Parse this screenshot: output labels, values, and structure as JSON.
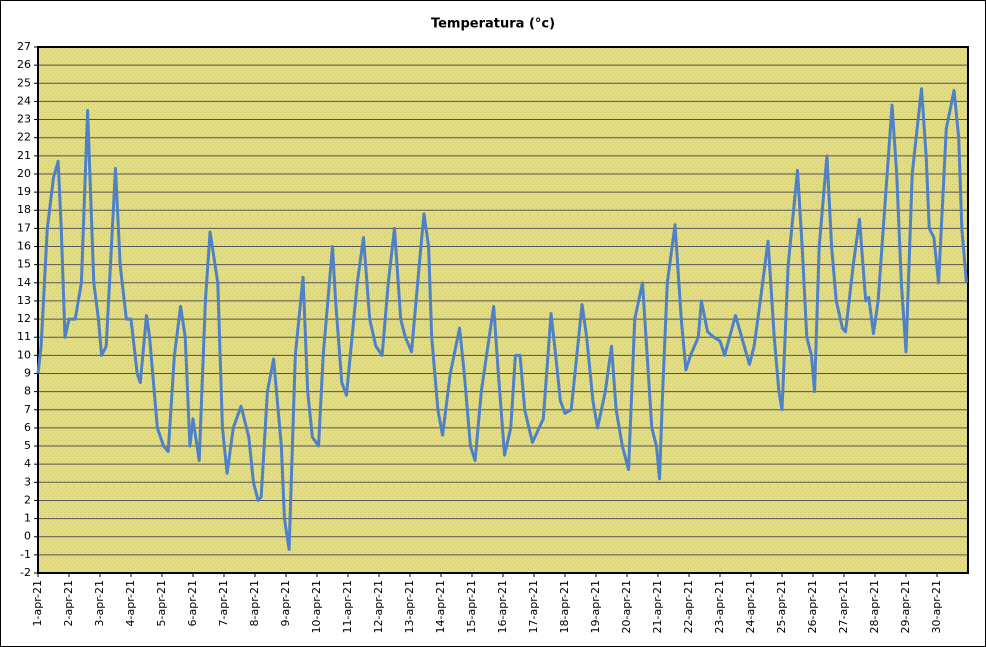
{
  "chart_data": {
    "type": "line",
    "title": "Temperatura (°c)",
    "x": [
      1.0,
      1.1,
      1.3,
      1.5,
      1.65,
      1.75,
      1.87,
      2.0,
      2.2,
      2.4,
      2.6,
      2.8,
      2.95,
      3.05,
      3.2,
      3.5,
      3.65,
      3.85,
      4.0,
      4.2,
      4.3,
      4.5,
      4.6,
      4.85,
      5.05,
      5.2,
      5.4,
      5.6,
      5.75,
      5.9,
      6.0,
      6.2,
      6.4,
      6.55,
      6.8,
      6.95,
      7.1,
      7.3,
      7.55,
      7.8,
      7.95,
      8.1,
      8.2,
      8.4,
      8.6,
      8.85,
      8.95,
      9.1,
      9.3,
      9.55,
      9.7,
      9.85,
      10.05,
      10.2,
      10.5,
      10.6,
      10.8,
      10.95,
      11.3,
      11.5,
      11.7,
      11.9,
      12.1,
      12.3,
      12.5,
      12.7,
      12.85,
      13.05,
      13.3,
      13.45,
      13.6,
      13.7,
      13.9,
      14.05,
      14.3,
      14.6,
      14.75,
      14.95,
      15.1,
      15.3,
      15.7,
      15.85,
      16.05,
      16.25,
      16.4,
      16.55,
      16.7,
      16.95,
      17.3,
      17.55,
      17.7,
      17.85,
      18.0,
      18.2,
      18.55,
      18.7,
      18.9,
      19.05,
      19.3,
      19.5,
      19.65,
      19.85,
      20.05,
      20.25,
      20.5,
      20.65,
      20.8,
      20.95,
      21.05,
      21.15,
      21.3,
      21.55,
      21.75,
      21.9,
      22.05,
      22.3,
      22.4,
      22.6,
      22.8,
      23.0,
      23.15,
      23.5,
      23.7,
      23.95,
      24.1,
      24.3,
      24.55,
      24.75,
      24.9,
      25.0,
      25.2,
      25.5,
      25.65,
      25.8,
      25.95,
      26.05,
      26.2,
      26.45,
      26.6,
      26.75,
      26.95,
      27.05,
      27.3,
      27.5,
      27.7,
      27.8,
      27.95,
      28.1,
      28.55,
      28.7,
      28.85,
      29.0,
      29.2,
      29.5,
      29.65,
      29.75,
      29.9,
      30.05,
      30.3,
      30.55,
      30.7,
      30.8,
      30.95
    ],
    "values": [
      9,
      10.5,
      17,
      19.8,
      20.7,
      17,
      11,
      12,
      12,
      14,
      23.5,
      14,
      12,
      10,
      10.5,
      20.3,
      15,
      12,
      12,
      9,
      8.5,
      12.2,
      11,
      6,
      5,
      4.7,
      10,
      12.7,
      11,
      5,
      6.5,
      4.2,
      13,
      16.8,
      14,
      6,
      3.5,
      6,
      7.2,
      5.5,
      3,
      2,
      2.2,
      8,
      9.8,
      5,
      1,
      -0.7,
      10,
      14.3,
      8,
      5.5,
      5,
      10,
      16,
      13,
      8.5,
      7.8,
      14,
      16.5,
      12,
      10.5,
      10,
      14,
      17,
      12,
      11,
      10.2,
      15,
      17.8,
      16,
      11,
      7,
      5.6,
      9,
      11.5,
      9,
      5,
      4.2,
      8,
      12.7,
      9,
      4.5,
      6,
      10,
      10,
      7,
      5.2,
      6.5,
      12.3,
      10,
      7.5,
      6.8,
      7,
      12.8,
      11,
      7.5,
      6,
      8,
      10.5,
      7,
      5,
      3.7,
      12,
      14,
      10,
      6,
      5,
      3.2,
      8,
      14,
      17.2,
      12,
      9.2,
      10,
      11,
      13,
      11.3,
      11,
      10.8,
      10,
      12.2,
      11,
      9.5,
      10.5,
      13,
      16.3,
      11,
      8,
      7,
      15,
      20.2,
      16,
      11,
      10,
      8,
      16,
      21,
      16,
      13,
      11.5,
      11.3,
      15,
      17.5,
      13,
      13.2,
      11.2,
      13,
      23.8,
      20,
      14,
      10.2,
      20,
      24.7,
      21,
      17,
      16.5,
      14,
      22.5,
      24.6,
      22,
      17,
      14
    ],
    "color": "#4f81c7",
    "xlim": [
      1,
      31
    ],
    "xticks": [
      {
        "value": 1,
        "label": "1-apr-21"
      },
      {
        "value": 2,
        "label": "2-apr-21"
      },
      {
        "value": 3,
        "label": "3-apr-21"
      },
      {
        "value": 4,
        "label": "4-apr-21"
      },
      {
        "value": 5,
        "label": "5-apr-21"
      },
      {
        "value": 6,
        "label": "6-apr-21"
      },
      {
        "value": 7,
        "label": "7-apr-21"
      },
      {
        "value": 8,
        "label": "8-apr-21"
      },
      {
        "value": 9,
        "label": "9-apr-21"
      },
      {
        "value": 10,
        "label": "10-apr-21"
      },
      {
        "value": 11,
        "label": "11-apr-21"
      },
      {
        "value": 12,
        "label": "12-apr-21"
      },
      {
        "value": 13,
        "label": "13-apr-21"
      },
      {
        "value": 14,
        "label": "14-apr-21"
      },
      {
        "value": 15,
        "label": "15-apr-21"
      },
      {
        "value": 16,
        "label": "16-apr-21"
      },
      {
        "value": 17,
        "label": "17-apr-21"
      },
      {
        "value": 18,
        "label": "18-apr-21"
      },
      {
        "value": 19,
        "label": "19-apr-21"
      },
      {
        "value": 20,
        "label": "20-apr-21"
      },
      {
        "value": 21,
        "label": "21-apr-21"
      },
      {
        "value": 22,
        "label": "22-apr-21"
      },
      {
        "value": 23,
        "label": "23-apr-21"
      },
      {
        "value": 24,
        "label": "24-apr-21"
      },
      {
        "value": 25,
        "label": "25-apr-21"
      },
      {
        "value": 26,
        "label": "26-apr-21"
      },
      {
        "value": 27,
        "label": "27-apr-21"
      },
      {
        "value": 28,
        "label": "28-apr-21"
      },
      {
        "value": 29,
        "label": "29-apr-21"
      },
      {
        "value": 30,
        "label": "30-apr-21"
      }
    ],
    "ylim": [
      -2,
      27
    ],
    "yticks": [
      -2,
      -1,
      0,
      1,
      2,
      3,
      4,
      5,
      6,
      7,
      8,
      9,
      10,
      11,
      12,
      13,
      14,
      15,
      16,
      17,
      18,
      19,
      20,
      21,
      22,
      23,
      24,
      25,
      26,
      27
    ],
    "grid": true
  }
}
